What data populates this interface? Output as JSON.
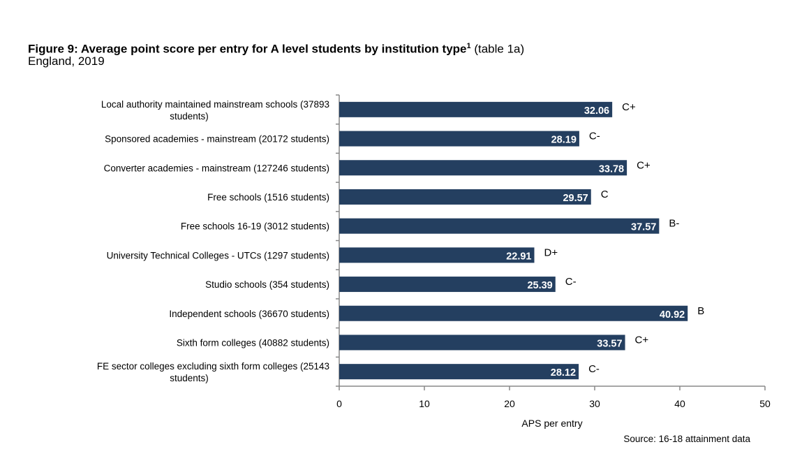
{
  "chart_data": {
    "type": "bar",
    "orientation": "horizontal",
    "title": "Figure 9: Average point score per entry for A level students by institution type",
    "title_superscript": "1",
    "title_suffix": " (table 1a)",
    "subtitle": "England, 2019",
    "categories": [
      [
        "Local authority maintained mainstream schools  (37893",
        "students)"
      ],
      [
        "Sponsored academies - mainstream  (20172 students)"
      ],
      [
        "Converter academies - mainstream (127246 students)"
      ],
      [
        "Free schools (1516 students)"
      ],
      [
        "Free schools 16-19 (3012 students)"
      ],
      [
        "University Technical Colleges - UTCs  (1297 students)"
      ],
      [
        "Studio schools  (354 students)"
      ],
      [
        "Independent schools  (36670 students)"
      ],
      [
        "Sixth form colleges  (40882 students)"
      ],
      [
        "FE sector colleges excluding sixth form colleges  (25143",
        "students)"
      ]
    ],
    "values": [
      32.06,
      28.19,
      33.78,
      29.57,
      37.57,
      22.91,
      25.39,
      40.92,
      33.57,
      28.12
    ],
    "data_labels": [
      "32.06",
      "28.19",
      "33.78",
      "29.57",
      "37.57",
      "22.91",
      "25.39",
      "40.92",
      "33.57",
      "28.12"
    ],
    "grades": [
      "C+",
      "C-",
      "C+",
      "C",
      "B-",
      "D+",
      "C-",
      "B",
      "C+",
      "C-"
    ],
    "xlabel": "APS per entry",
    "ylabel": "",
    "xlim": [
      0,
      50
    ],
    "xticks": [
      "0",
      "10",
      "20",
      "30",
      "40",
      "50"
    ],
    "grid": false,
    "bar_color": "#243f60",
    "source": "Source: 16-18 attainment data"
  }
}
